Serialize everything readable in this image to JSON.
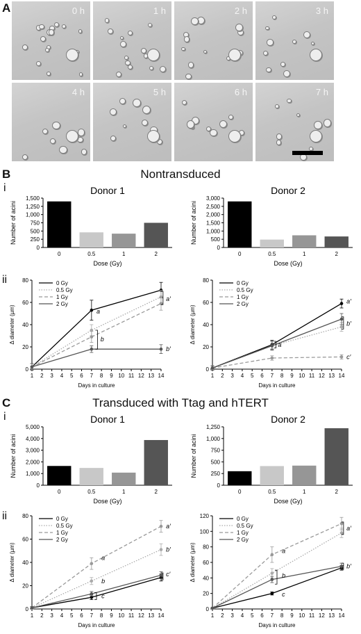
{
  "panels": {
    "a_letter": "A",
    "b_letter": "B",
    "c_letter": "C",
    "roman_i": "i",
    "roman_ii": "ii"
  },
  "microscopy": {
    "time_labels": [
      "0 h",
      "1 h",
      "2 h",
      "3 h",
      "4 h",
      "5 h",
      "6 h",
      "7 h"
    ],
    "scale_bar": true
  },
  "sections": {
    "b_title": "Nontransduced",
    "c_title": "Transduced with Ttag and hTERT"
  },
  "chart_data": [
    {
      "id": "B-i-donor1",
      "type": "bar",
      "title": "Donor 1",
      "xlabel": "Dose (Gy)",
      "ylabel": "Number of acini",
      "categories": [
        "0",
        "0.5",
        "1",
        "2"
      ],
      "values": [
        1400,
        460,
        420,
        750
      ],
      "colors": [
        "#000000",
        "#c8c8c8",
        "#969696",
        "#555555"
      ],
      "ylim": [
        0,
        1500
      ],
      "yticks": [
        0,
        250,
        500,
        750,
        1000,
        1250,
        1500
      ],
      "ytick_labels": [
        "0",
        "250",
        "500",
        "750",
        "1,000",
        "1,250",
        "1,500"
      ]
    },
    {
      "id": "B-i-donor2",
      "type": "bar",
      "title": "Donor 2",
      "xlabel": "Dose (Gy)",
      "ylabel": "Number of acini",
      "categories": [
        "0",
        "0.5",
        "1",
        "2"
      ],
      "values": [
        2800,
        480,
        740,
        670
      ],
      "colors": [
        "#000000",
        "#c8c8c8",
        "#969696",
        "#555555"
      ],
      "ylim": [
        0,
        3000
      ],
      "yticks": [
        0,
        500,
        1000,
        1500,
        2000,
        2500,
        3000
      ],
      "ytick_labels": [
        "0",
        "500",
        "1,000",
        "1,500",
        "2,000",
        "2,500",
        "3,000"
      ]
    },
    {
      "id": "B-ii-donor1",
      "type": "line",
      "xlabel": "Days in culture",
      "ylabel": "Δ diameter (µm)",
      "x_ticks": [
        1,
        2,
        3,
        4,
        5,
        6,
        7,
        8,
        9,
        10,
        11,
        12,
        13,
        14
      ],
      "xlim": [
        1,
        14
      ],
      "ylim": [
        0,
        80
      ],
      "yticks": [
        0,
        20,
        40,
        60,
        80
      ],
      "legend": "top-left",
      "series": [
        {
          "name": "0 Gy",
          "x": [
            1,
            7,
            14
          ],
          "y": [
            2,
            53,
            71
          ],
          "err": [
            3,
            9,
            7
          ],
          "color": "#000000",
          "dash": "solid"
        },
        {
          "name": "0.5 Gy",
          "x": [
            1,
            7,
            14
          ],
          "y": [
            2,
            35,
            65
          ],
          "err": [
            3,
            5,
            6
          ],
          "color": "#aaaaaa",
          "dash": "dotted"
        },
        {
          "name": "1 Gy",
          "x": [
            1,
            7,
            14
          ],
          "y": [
            2,
            29,
            59
          ],
          "err": [
            3,
            5,
            6
          ],
          "color": "#999999",
          "dash": "dashed"
        },
        {
          "name": "2 Gy",
          "x": [
            1,
            7,
            14
          ],
          "y": [
            2,
            18,
            18
          ],
          "err": [
            3,
            3,
            4
          ],
          "color": "#555555",
          "dash": "solid"
        }
      ],
      "annotations": [
        {
          "text": "a",
          "x": 7.5,
          "y": 52
        },
        {
          "text": "b",
          "x": 7.9,
          "y": 27
        },
        {
          "text": "a′",
          "x": 14.5,
          "y": 63
        },
        {
          "text": "b′",
          "x": 14.5,
          "y": 18
        }
      ],
      "brackets": [
        {
          "x": 7.6,
          "y1": 18,
          "y2": 35
        },
        {
          "x": 14.2,
          "y1": 58,
          "y2": 70
        }
      ]
    },
    {
      "id": "B-ii-donor2",
      "type": "line",
      "xlabel": "Days in culture",
      "ylabel": "Δ diameter (µm)",
      "x_ticks": [
        1,
        2,
        3,
        4,
        5,
        6,
        7,
        8,
        9,
        10,
        11,
        12,
        13,
        14
      ],
      "xlim": [
        1,
        14
      ],
      "ylim": [
        0,
        80
      ],
      "yticks": [
        0,
        20,
        40,
        60,
        80
      ],
      "legend": "top-left",
      "series": [
        {
          "name": "0 Gy",
          "x": [
            1,
            7,
            14
          ],
          "y": [
            1,
            22,
            59
          ],
          "err": [
            2,
            4,
            4
          ],
          "color": "#000000",
          "dash": "solid"
        },
        {
          "name": "0.5 Gy",
          "x": [
            1,
            7,
            14
          ],
          "y": [
            1,
            21,
            38
          ],
          "err": [
            2,
            4,
            4
          ],
          "color": "#aaaaaa",
          "dash": "dotted"
        },
        {
          "name": "1 Gy",
          "x": [
            1,
            7,
            14
          ],
          "y": [
            1,
            10,
            11
          ],
          "err": [
            2,
            2,
            2
          ],
          "color": "#999999",
          "dash": "dashed"
        },
        {
          "name": "2 Gy",
          "x": [
            1,
            7,
            14
          ],
          "y": [
            1,
            21,
            45
          ],
          "err": [
            2,
            4,
            5
          ],
          "color": "#555555",
          "dash": "solid"
        }
      ],
      "annotations": [
        {
          "text": "a",
          "x": 7.6,
          "y": 22
        },
        {
          "text": "a′",
          "x": 14.5,
          "y": 61
        },
        {
          "text": "b′",
          "x": 14.5,
          "y": 41
        },
        {
          "text": "c′",
          "x": 14.5,
          "y": 11
        }
      ],
      "brackets": [
        {
          "x": 7.4,
          "y1": 19,
          "y2": 25
        },
        {
          "x": 14.2,
          "y1": 36,
          "y2": 47
        }
      ]
    },
    {
      "id": "C-i-donor1",
      "type": "bar",
      "title": "Donor 1",
      "xlabel": "Dose (Gy)",
      "ylabel": "Number of acini",
      "categories": [
        "0",
        "0.5",
        "1",
        "2"
      ],
      "values": [
        1650,
        1480,
        1080,
        3870
      ],
      "colors": [
        "#000000",
        "#c8c8c8",
        "#969696",
        "#555555"
      ],
      "ylim": [
        0,
        5000
      ],
      "yticks": [
        0,
        1000,
        2000,
        3000,
        4000,
        5000
      ],
      "ytick_labels": [
        "0",
        "1,000",
        "2,000",
        "3,000",
        "4,000",
        "5,000"
      ]
    },
    {
      "id": "C-i-donor2",
      "type": "bar",
      "title": "Donor 2",
      "xlabel": "Dose (Gy)",
      "ylabel": "Number of acini",
      "categories": [
        "0",
        "0.5",
        "1",
        "2"
      ],
      "values": [
        300,
        410,
        420,
        1220
      ],
      "colors": [
        "#000000",
        "#c8c8c8",
        "#969696",
        "#555555"
      ],
      "ylim": [
        0,
        1250
      ],
      "yticks": [
        0,
        250,
        500,
        750,
        1000,
        1250
      ],
      "ytick_labels": [
        "0",
        "250",
        "500",
        "750",
        "1,000",
        "1,250"
      ]
    },
    {
      "id": "C-ii-donor1",
      "type": "line",
      "xlabel": "Days in culture",
      "ylabel": "Δ diameter (µm)",
      "x_ticks": [
        1,
        2,
        3,
        4,
        5,
        6,
        7,
        8,
        9,
        10,
        11,
        12,
        13,
        14
      ],
      "xlim": [
        1,
        14
      ],
      "ylim": [
        0,
        80
      ],
      "yticks": [
        0,
        20,
        40,
        60,
        80
      ],
      "legend": "top-left",
      "series": [
        {
          "name": "0 Gy",
          "x": [
            1,
            7,
            14
          ],
          "y": [
            1,
            10,
            27
          ],
          "err": [
            1,
            2,
            3
          ],
          "color": "#000000",
          "dash": "solid"
        },
        {
          "name": "0.5 Gy",
          "x": [
            1,
            7,
            14
          ],
          "y": [
            1,
            24,
            51
          ],
          "err": [
            1,
            3,
            5
          ],
          "color": "#aaaaaa",
          "dash": "dotted"
        },
        {
          "name": "1 Gy",
          "x": [
            1,
            7,
            14
          ],
          "y": [
            1,
            39,
            71
          ],
          "err": [
            1,
            5,
            5
          ],
          "color": "#999999",
          "dash": "dashed"
        },
        {
          "name": "2 Gy",
          "x": [
            1,
            7,
            14
          ],
          "y": [
            1,
            13,
            29
          ],
          "err": [
            1,
            2,
            3
          ],
          "color": "#555555",
          "dash": "solid"
        }
      ],
      "annotations": [
        {
          "text": "a",
          "x": 8,
          "y": 44
        },
        {
          "text": "b",
          "x": 8,
          "y": 24
        },
        {
          "text": "c",
          "x": 8,
          "y": 11
        },
        {
          "text": "a′",
          "x": 14.5,
          "y": 71
        },
        {
          "text": "b′",
          "x": 14.5,
          "y": 51
        },
        {
          "text": "c′",
          "x": 14.5,
          "y": 30
        }
      ],
      "brackets": [
        {
          "x": 7.5,
          "y1": 8,
          "y2": 14
        },
        {
          "x": 14.2,
          "y1": 25,
          "y2": 31
        }
      ]
    },
    {
      "id": "C-ii-donor2",
      "type": "line",
      "xlabel": "Days in culture",
      "ylabel": "Δ diameter (µm)",
      "x_ticks": [
        1,
        2,
        3,
        4,
        5,
        6,
        7,
        8,
        9,
        10,
        11,
        12,
        13,
        14
      ],
      "xlim": [
        1,
        14
      ],
      "ylim": [
        0,
        120
      ],
      "yticks": [
        0,
        20,
        40,
        60,
        80,
        100,
        120
      ],
      "legend": "top-left",
      "series": [
        {
          "name": "0 Gy",
          "x": [
            1,
            7,
            14
          ],
          "y": [
            1,
            20,
            53
          ],
          "err": [
            1,
            2,
            3
          ],
          "color": "#000000",
          "dash": "solid"
        },
        {
          "name": "0.5 Gy",
          "x": [
            1,
            7,
            14
          ],
          "y": [
            1,
            46,
            98
          ],
          "err": [
            1,
            6,
            6
          ],
          "color": "#aaaaaa",
          "dash": "dotted"
        },
        {
          "name": "1 Gy",
          "x": [
            1,
            7,
            14
          ],
          "y": [
            1,
            70,
            110
          ],
          "err": [
            1,
            10,
            8
          ],
          "color": "#999999",
          "dash": "dashed"
        },
        {
          "name": "2 Gy",
          "x": [
            1,
            7,
            14
          ],
          "y": [
            1,
            38,
            55
          ],
          "err": [
            1,
            4,
            4
          ],
          "color": "#555555",
          "dash": "solid"
        }
      ],
      "annotations": [
        {
          "text": "a",
          "x": 8,
          "y": 75
        },
        {
          "text": "b",
          "x": 8,
          "y": 43
        },
        {
          "text": "c",
          "x": 8,
          "y": 19
        },
        {
          "text": "a′",
          "x": 14.5,
          "y": 104
        },
        {
          "text": "b′",
          "x": 14.5,
          "y": 55
        }
      ],
      "brackets": [
        {
          "x": 7.5,
          "y1": 32,
          "y2": 50
        },
        {
          "x": 14.2,
          "y1": 96,
          "y2": 112
        },
        {
          "x": 14.2,
          "y1": 51,
          "y2": 59
        }
      ]
    }
  ]
}
